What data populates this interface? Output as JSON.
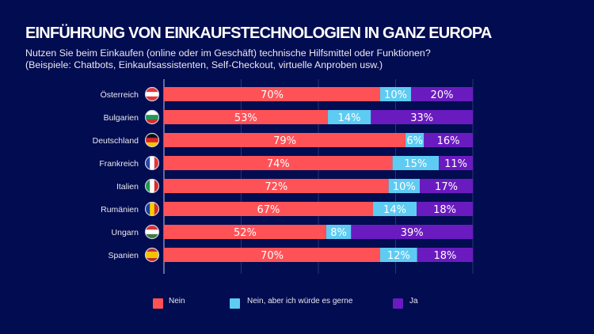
{
  "chart_data": {
    "type": "bar",
    "orientation": "horizontal",
    "stacked": true,
    "title": "EINFÜHRUNG VON EINKAUFSTECHNOLOGIEN IN GANZ EUROPA",
    "subtitle": [
      "Nutzen Sie beim Einkaufen (online oder im Geschäft) technische Hilfsmittel oder Funktionen?",
      "(Beispiele: Chatbots, Einkaufsassistenten, Self-Checkout, virtuelle Anproben usw.)"
    ],
    "categories": [
      "Österreich",
      "Bulgarien",
      "Deutschland",
      "Frankreich",
      "Italien",
      "Rumänien",
      "Ungarn",
      "Spanien"
    ],
    "flags": [
      "austria-flag",
      "bulgaria-flag",
      "germany-flag",
      "france-flag",
      "italy-flag",
      "romania-flag",
      "hungary-flag",
      "spain-flag"
    ],
    "series": [
      {
        "name": "Nein",
        "color": "#ff5257",
        "values": [
          70,
          53,
          79,
          74,
          72,
          67,
          52,
          70
        ]
      },
      {
        "name": "Nein, aber ich würde es gerne",
        "color": "#5ecbf3",
        "values": [
          10,
          14,
          6,
          15,
          10,
          14,
          8,
          12
        ]
      },
      {
        "name": "Ja",
        "color": "#6a1bbf",
        "values": [
          20,
          33,
          16,
          11,
          17,
          18,
          39,
          18
        ]
      }
    ],
    "xlim": [
      0,
      100
    ],
    "grid": true,
    "legend_position": "bottom"
  }
}
